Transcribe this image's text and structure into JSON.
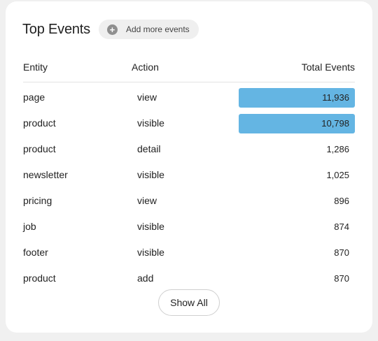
{
  "header": {
    "title": "Top Events",
    "add_label": "Add more events",
    "add_icon": "plus-circle-icon"
  },
  "columns": {
    "entity": "Entity",
    "action": "Action",
    "total": "Total Events"
  },
  "rows": [
    {
      "entity": "page",
      "action": "view",
      "total": "11,936",
      "bar_fraction": 1.0
    },
    {
      "entity": "product",
      "action": "visible",
      "total": "10,798",
      "bar_fraction": 1.0
    },
    {
      "entity": "product",
      "action": "detail",
      "total": "1,286",
      "bar_fraction": 0
    },
    {
      "entity": "newsletter",
      "action": "visible",
      "total": "1,025",
      "bar_fraction": 0
    },
    {
      "entity": "pricing",
      "action": "view",
      "total": "896",
      "bar_fraction": 0
    },
    {
      "entity": "job",
      "action": "visible",
      "total": "874",
      "bar_fraction": 0
    },
    {
      "entity": "footer",
      "action": "visible",
      "total": "870",
      "bar_fraction": 0
    },
    {
      "entity": "product",
      "action": "add",
      "total": "870",
      "bar_fraction": 0
    }
  ],
  "footer": {
    "show_all_label": "Show All"
  },
  "colors": {
    "bar": "#64b5e3"
  }
}
